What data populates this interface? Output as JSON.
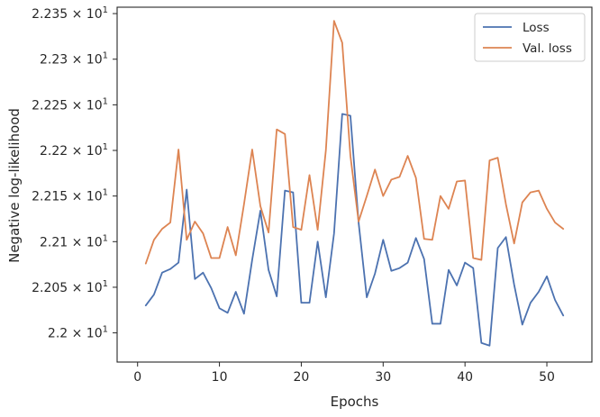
{
  "chart_data": {
    "type": "line",
    "xlabel": "Epochs",
    "ylabel": "Negative log-likelihood",
    "xlim": [
      -2.5,
      55.5
    ],
    "ylim": [
      21.968,
      22.357
    ],
    "x_ticks": [
      0,
      10,
      20,
      30,
      40,
      50
    ],
    "y_ticks": [
      {
        "value": 22.0,
        "mantissa": "2.2",
        "exponent": "1"
      },
      {
        "value": 22.05,
        "mantissa": "2.205",
        "exponent": "1"
      },
      {
        "value": 22.1,
        "mantissa": "2.21",
        "exponent": "1"
      },
      {
        "value": 22.15,
        "mantissa": "2.215",
        "exponent": "1"
      },
      {
        "value": 22.2,
        "mantissa": "2.22",
        "exponent": "1"
      },
      {
        "value": 22.25,
        "mantissa": "2.225",
        "exponent": "1"
      },
      {
        "value": 22.3,
        "mantissa": "2.23",
        "exponent": "1"
      },
      {
        "value": 22.35,
        "mantissa": "2.235",
        "exponent": "1"
      }
    ],
    "x": [
      1,
      2,
      3,
      4,
      5,
      6,
      7,
      8,
      9,
      10,
      11,
      12,
      13,
      14,
      15,
      16,
      17,
      18,
      19,
      20,
      21,
      22,
      23,
      24,
      25,
      26,
      27,
      28,
      29,
      30,
      31,
      32,
      33,
      34,
      35,
      36,
      37,
      38,
      39,
      40,
      41,
      42,
      43,
      44,
      45,
      46,
      47,
      48,
      49,
      50,
      51,
      52
    ],
    "series": [
      {
        "name": "Loss",
        "color": "#4c72b0",
        "values": [
          22.03,
          22.042,
          22.066,
          22.07,
          22.077,
          22.157,
          22.059,
          22.066,
          22.049,
          22.027,
          22.022,
          22.045,
          22.021,
          22.08,
          22.134,
          22.069,
          22.04,
          22.156,
          22.154,
          22.033,
          22.033,
          22.1,
          22.039,
          22.109,
          22.24,
          22.238,
          22.121,
          22.039,
          22.065,
          22.102,
          22.068,
          22.071,
          22.077,
          22.104,
          22.081,
          22.01,
          22.01,
          22.069,
          22.052,
          22.077,
          22.071,
          21.989,
          21.986,
          22.093,
          22.105,
          22.053,
          22.009,
          22.033,
          22.045,
          22.062,
          22.036,
          22.019
        ]
      },
      {
        "name": "Val. loss",
        "color": "#dd8452",
        "values": [
          22.076,
          22.102,
          22.114,
          22.121,
          22.201,
          22.102,
          22.122,
          22.109,
          22.082,
          22.082,
          22.116,
          22.085,
          22.141,
          22.201,
          22.139,
          22.11,
          22.223,
          22.218,
          22.116,
          22.113,
          22.173,
          22.113,
          22.2,
          22.342,
          22.318,
          22.194,
          22.122,
          22.15,
          22.179,
          22.15,
          22.168,
          22.171,
          22.194,
          22.17,
          22.103,
          22.102,
          22.15,
          22.136,
          22.166,
          22.167,
          22.082,
          22.08,
          22.189,
          22.192,
          22.141,
          22.098,
          22.143,
          22.154,
          22.156,
          22.136,
          22.121,
          22.114
        ]
      }
    ],
    "grid": false,
    "legend_position": "top-right"
  }
}
